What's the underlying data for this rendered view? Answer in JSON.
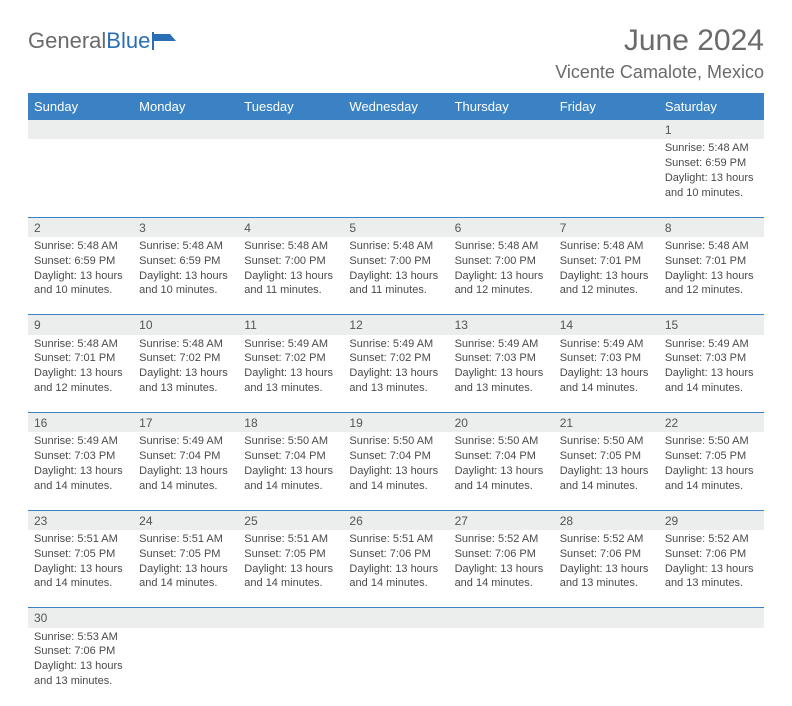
{
  "logo": {
    "general": "General",
    "blue": "Blue"
  },
  "title": "June 2024",
  "location": "Vicente Camalote, Mexico",
  "colors": {
    "header_bg": "#3a82c4",
    "header_text": "#ffffff",
    "daynum_bg": "#eceded",
    "row_divider": "#3a82c4",
    "text": "#4a4a4a",
    "title_color": "#6a6a6a"
  },
  "typography": {
    "title_fontsize": 30,
    "location_fontsize": 18,
    "dayheader_fontsize": 13,
    "cell_fontsize": 11
  },
  "weekdays": [
    "Sunday",
    "Monday",
    "Tuesday",
    "Wednesday",
    "Thursday",
    "Friday",
    "Saturday"
  ],
  "weeks": [
    [
      null,
      null,
      null,
      null,
      null,
      null,
      {
        "n": "1",
        "sunrise": "Sunrise: 5:48 AM",
        "sunset": "Sunset: 6:59 PM",
        "daylight": "Daylight: 13 hours and 10 minutes."
      }
    ],
    [
      {
        "n": "2",
        "sunrise": "Sunrise: 5:48 AM",
        "sunset": "Sunset: 6:59 PM",
        "daylight": "Daylight: 13 hours and 10 minutes."
      },
      {
        "n": "3",
        "sunrise": "Sunrise: 5:48 AM",
        "sunset": "Sunset: 6:59 PM",
        "daylight": "Daylight: 13 hours and 10 minutes."
      },
      {
        "n": "4",
        "sunrise": "Sunrise: 5:48 AM",
        "sunset": "Sunset: 7:00 PM",
        "daylight": "Daylight: 13 hours and 11 minutes."
      },
      {
        "n": "5",
        "sunrise": "Sunrise: 5:48 AM",
        "sunset": "Sunset: 7:00 PM",
        "daylight": "Daylight: 13 hours and 11 minutes."
      },
      {
        "n": "6",
        "sunrise": "Sunrise: 5:48 AM",
        "sunset": "Sunset: 7:00 PM",
        "daylight": "Daylight: 13 hours and 12 minutes."
      },
      {
        "n": "7",
        "sunrise": "Sunrise: 5:48 AM",
        "sunset": "Sunset: 7:01 PM",
        "daylight": "Daylight: 13 hours and 12 minutes."
      },
      {
        "n": "8",
        "sunrise": "Sunrise: 5:48 AM",
        "sunset": "Sunset: 7:01 PM",
        "daylight": "Daylight: 13 hours and 12 minutes."
      }
    ],
    [
      {
        "n": "9",
        "sunrise": "Sunrise: 5:48 AM",
        "sunset": "Sunset: 7:01 PM",
        "daylight": "Daylight: 13 hours and 12 minutes."
      },
      {
        "n": "10",
        "sunrise": "Sunrise: 5:48 AM",
        "sunset": "Sunset: 7:02 PM",
        "daylight": "Daylight: 13 hours and 13 minutes."
      },
      {
        "n": "11",
        "sunrise": "Sunrise: 5:49 AM",
        "sunset": "Sunset: 7:02 PM",
        "daylight": "Daylight: 13 hours and 13 minutes."
      },
      {
        "n": "12",
        "sunrise": "Sunrise: 5:49 AM",
        "sunset": "Sunset: 7:02 PM",
        "daylight": "Daylight: 13 hours and 13 minutes."
      },
      {
        "n": "13",
        "sunrise": "Sunrise: 5:49 AM",
        "sunset": "Sunset: 7:03 PM",
        "daylight": "Daylight: 13 hours and 13 minutes."
      },
      {
        "n": "14",
        "sunrise": "Sunrise: 5:49 AM",
        "sunset": "Sunset: 7:03 PM",
        "daylight": "Daylight: 13 hours and 14 minutes."
      },
      {
        "n": "15",
        "sunrise": "Sunrise: 5:49 AM",
        "sunset": "Sunset: 7:03 PM",
        "daylight": "Daylight: 13 hours and 14 minutes."
      }
    ],
    [
      {
        "n": "16",
        "sunrise": "Sunrise: 5:49 AM",
        "sunset": "Sunset: 7:03 PM",
        "daylight": "Daylight: 13 hours and 14 minutes."
      },
      {
        "n": "17",
        "sunrise": "Sunrise: 5:49 AM",
        "sunset": "Sunset: 7:04 PM",
        "daylight": "Daylight: 13 hours and 14 minutes."
      },
      {
        "n": "18",
        "sunrise": "Sunrise: 5:50 AM",
        "sunset": "Sunset: 7:04 PM",
        "daylight": "Daylight: 13 hours and 14 minutes."
      },
      {
        "n": "19",
        "sunrise": "Sunrise: 5:50 AM",
        "sunset": "Sunset: 7:04 PM",
        "daylight": "Daylight: 13 hours and 14 minutes."
      },
      {
        "n": "20",
        "sunrise": "Sunrise: 5:50 AM",
        "sunset": "Sunset: 7:04 PM",
        "daylight": "Daylight: 13 hours and 14 minutes."
      },
      {
        "n": "21",
        "sunrise": "Sunrise: 5:50 AM",
        "sunset": "Sunset: 7:05 PM",
        "daylight": "Daylight: 13 hours and 14 minutes."
      },
      {
        "n": "22",
        "sunrise": "Sunrise: 5:50 AM",
        "sunset": "Sunset: 7:05 PM",
        "daylight": "Daylight: 13 hours and 14 minutes."
      }
    ],
    [
      {
        "n": "23",
        "sunrise": "Sunrise: 5:51 AM",
        "sunset": "Sunset: 7:05 PM",
        "daylight": "Daylight: 13 hours and 14 minutes."
      },
      {
        "n": "24",
        "sunrise": "Sunrise: 5:51 AM",
        "sunset": "Sunset: 7:05 PM",
        "daylight": "Daylight: 13 hours and 14 minutes."
      },
      {
        "n": "25",
        "sunrise": "Sunrise: 5:51 AM",
        "sunset": "Sunset: 7:05 PM",
        "daylight": "Daylight: 13 hours and 14 minutes."
      },
      {
        "n": "26",
        "sunrise": "Sunrise: 5:51 AM",
        "sunset": "Sunset: 7:06 PM",
        "daylight": "Daylight: 13 hours and 14 minutes."
      },
      {
        "n": "27",
        "sunrise": "Sunrise: 5:52 AM",
        "sunset": "Sunset: 7:06 PM",
        "daylight": "Daylight: 13 hours and 14 minutes."
      },
      {
        "n": "28",
        "sunrise": "Sunrise: 5:52 AM",
        "sunset": "Sunset: 7:06 PM",
        "daylight": "Daylight: 13 hours and 13 minutes."
      },
      {
        "n": "29",
        "sunrise": "Sunrise: 5:52 AM",
        "sunset": "Sunset: 7:06 PM",
        "daylight": "Daylight: 13 hours and 13 minutes."
      }
    ],
    [
      {
        "n": "30",
        "sunrise": "Sunrise: 5:53 AM",
        "sunset": "Sunset: 7:06 PM",
        "daylight": "Daylight: 13 hours and 13 minutes."
      },
      null,
      null,
      null,
      null,
      null,
      null
    ]
  ]
}
